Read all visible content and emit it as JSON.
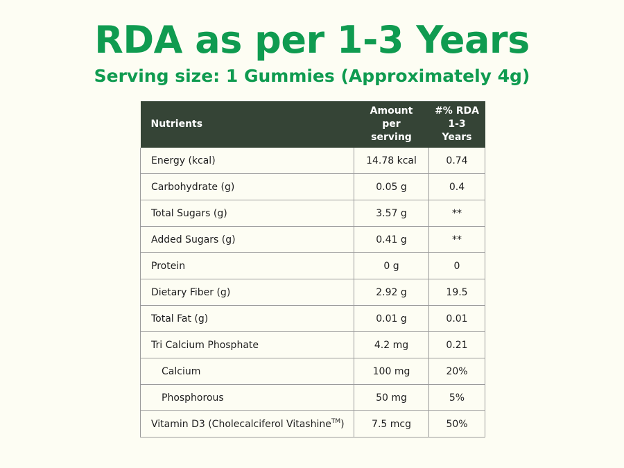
{
  "title": "RDA as per 1-3 Years",
  "subtitle": "Serving size: 1 Gummies (Approximately 4g)",
  "table": {
    "headers": {
      "nutrients": "Nutrients",
      "amount_line1": "Amount",
      "amount_line2": "per",
      "amount_line3": "serving",
      "rda_line1": "#% RDA",
      "rda_line2": "1-3",
      "rda_line3": "Years"
    },
    "rows": [
      {
        "name": "Energy (kcal)",
        "amount": "14.78 kcal",
        "rda": "0.74",
        "indent": false
      },
      {
        "name": "Carbohydrate (g)",
        "amount": "0.05 g",
        "rda": "0.4",
        "indent": false
      },
      {
        "name": "Total Sugars (g)",
        "amount": "3.57 g",
        "rda": "**",
        "indent": false
      },
      {
        "name": "Added Sugars (g)",
        "amount": "0.41 g",
        "rda": "**",
        "indent": false
      },
      {
        "name": "Protein",
        "amount": "0 g",
        "rda": "0",
        "indent": false
      },
      {
        "name": "Dietary Fiber (g)",
        "amount": "2.92 g",
        "rda": "19.5",
        "indent": false
      },
      {
        "name": "Total Fat (g)",
        "amount": "0.01 g",
        "rda": "0.01",
        "indent": false
      },
      {
        "name": "Tri Calcium Phosphate",
        "amount": "4.2 mg",
        "rda": "0.21",
        "indent": false
      },
      {
        "name": "Calcium",
        "amount": "100 mg",
        "rda": "20%",
        "indent": true
      },
      {
        "name": "Phosphorous",
        "amount": "50 mg",
        "rda": "5%",
        "indent": true
      },
      {
        "name": "Vitamin D3 (Cholecalciferol Vitashine",
        "name_mark": "TM",
        "name_end": ")",
        "amount": "7.5 mcg",
        "rda": "50%",
        "indent": false
      }
    ]
  },
  "colors": {
    "title_green": "#0f9b50",
    "header_bg": "#354436",
    "page_bg": "#fdfdf3",
    "grid": "#9a9a9a"
  }
}
